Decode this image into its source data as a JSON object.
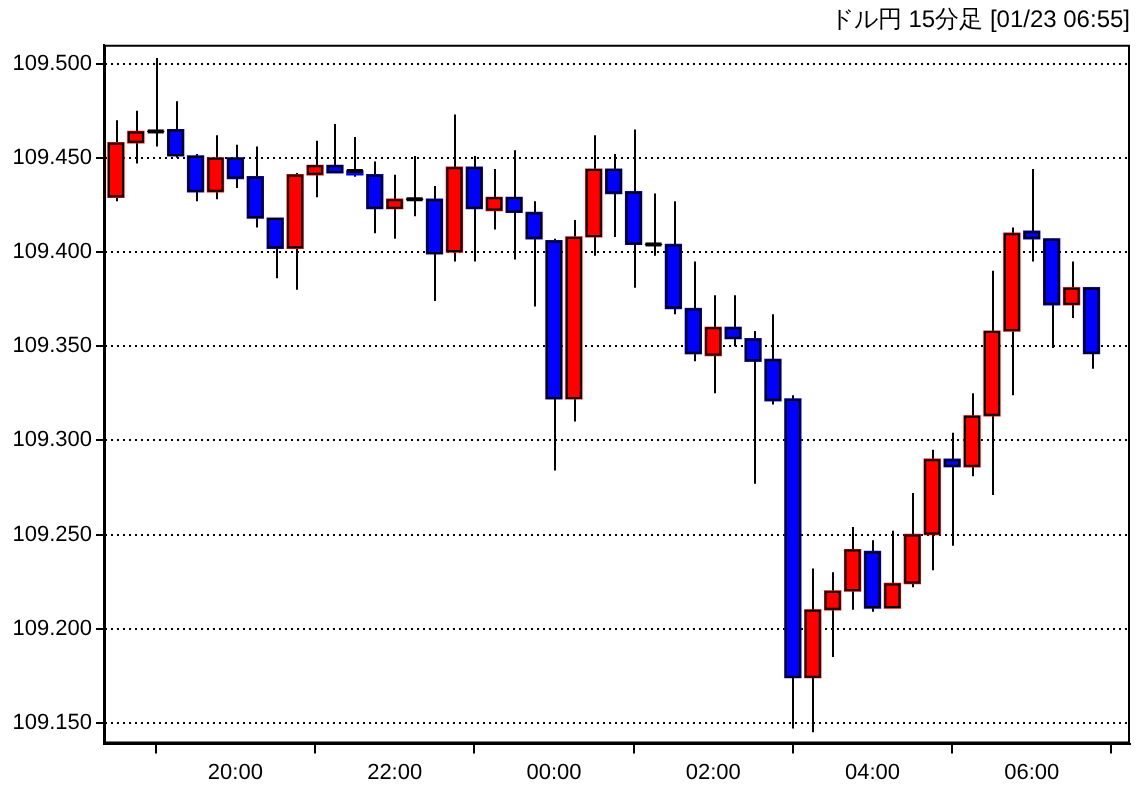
{
  "chart_data": {
    "type": "candlestick",
    "title": "ドル円 15分足 [01/23 06:55]",
    "x": [
      "--01-22T18:30",
      "--01-22T18:45",
      "--01-22T19:00",
      "--01-22T19:15",
      "--01-22T19:30",
      "--01-22T19:45",
      "--01-22T20:00",
      "--01-22T20:15",
      "--01-22T20:30",
      "--01-22T20:45",
      "--01-22T21:00",
      "--01-22T21:15",
      "--01-22T21:30",
      "--01-22T21:45",
      "--01-22T22:00",
      "--01-22T22:15",
      "--01-22T22:30",
      "--01-22T22:45",
      "--01-22T23:00",
      "--01-22T23:15",
      "--01-22T23:30",
      "--01-22T23:45",
      "--01-23T00:00",
      "--01-23T00:15",
      "--01-23T00:30",
      "--01-23T00:45",
      "--01-23T01:00",
      "--01-23T01:15",
      "--01-23T01:30",
      "--01-23T01:45",
      "--01-23T02:00",
      "--01-23T02:15",
      "--01-23T02:30",
      "--01-23T02:45",
      "--01-23T03:00",
      "--01-23T03:15",
      "--01-23T03:30",
      "--01-23T03:45",
      "--01-23T04:00",
      "--01-23T04:15",
      "--01-23T04:30",
      "--01-23T04:45",
      "--01-23T05:00",
      "--01-23T05:15",
      "--01-23T05:30",
      "--01-23T05:45",
      "--01-23T06:00",
      "--01-23T06:15",
      "--01-23T06:30",
      "--01-23T06:45"
    ],
    "ohlc": [
      [
        109.429,
        109.47,
        109.427,
        109.458
      ],
      [
        109.458,
        109.475,
        109.447,
        109.464
      ],
      [
        109.464,
        109.503,
        109.456,
        109.464
      ],
      [
        109.465,
        109.48,
        109.45,
        109.451
      ],
      [
        109.451,
        109.452,
        109.427,
        109.432
      ],
      [
        109.432,
        109.462,
        109.428,
        109.45
      ],
      [
        109.45,
        109.457,
        109.434,
        109.439
      ],
      [
        109.44,
        109.456,
        109.413,
        109.418
      ],
      [
        109.418,
        109.418,
        109.386,
        109.402
      ],
      [
        109.402,
        109.442,
        109.38,
        109.441
      ],
      [
        109.441,
        109.459,
        109.429,
        109.446
      ],
      [
        109.446,
        109.468,
        109.442,
        109.442
      ],
      [
        109.443,
        109.461,
        109.44,
        109.441
      ],
      [
        109.441,
        109.448,
        109.41,
        109.423
      ],
      [
        109.423,
        109.441,
        109.407,
        109.428
      ],
      [
        109.428,
        109.451,
        109.419,
        109.428
      ],
      [
        109.428,
        109.435,
        109.374,
        109.399
      ],
      [
        109.4,
        109.473,
        109.395,
        109.445
      ],
      [
        109.445,
        109.451,
        109.395,
        109.423
      ],
      [
        109.422,
        109.444,
        109.412,
        109.429
      ],
      [
        109.429,
        109.454,
        109.396,
        109.421
      ],
      [
        109.421,
        109.427,
        109.371,
        109.407
      ],
      [
        109.406,
        109.407,
        109.284,
        109.322
      ],
      [
        109.322,
        109.417,
        109.31,
        109.408
      ],
      [
        109.408,
        109.462,
        109.398,
        109.444
      ],
      [
        109.444,
        109.452,
        109.408,
        109.431
      ],
      [
        109.432,
        109.465,
        109.381,
        109.404
      ],
      [
        109.404,
        109.431,
        109.398,
        109.404
      ],
      [
        109.404,
        109.427,
        109.367,
        109.37
      ],
      [
        109.37,
        109.395,
        109.342,
        109.346
      ],
      [
        109.345,
        109.377,
        109.325,
        109.36
      ],
      [
        109.36,
        109.377,
        109.35,
        109.354
      ],
      [
        109.354,
        109.358,
        109.277,
        109.342
      ],
      [
        109.343,
        109.367,
        109.319,
        109.321
      ],
      [
        109.322,
        109.324,
        109.147,
        109.174
      ],
      [
        109.174,
        109.232,
        109.145,
        109.21
      ],
      [
        109.21,
        109.23,
        109.185,
        109.22
      ],
      [
        109.22,
        109.254,
        109.21,
        109.242
      ],
      [
        109.241,
        109.247,
        109.209,
        109.211
      ],
      [
        109.211,
        109.252,
        109.211,
        109.224
      ],
      [
        109.224,
        109.272,
        109.222,
        109.25
      ],
      [
        109.25,
        109.295,
        109.231,
        109.29
      ],
      [
        109.29,
        109.304,
        109.244,
        109.286
      ],
      [
        109.286,
        109.325,
        109.281,
        109.313
      ],
      [
        109.313,
        109.39,
        109.271,
        109.358
      ],
      [
        109.358,
        109.413,
        109.324,
        109.41
      ],
      [
        109.411,
        109.444,
        109.395,
        109.407
      ],
      [
        109.407,
        109.407,
        109.349,
        109.372
      ],
      [
        109.372,
        109.395,
        109.365,
        109.381
      ],
      [
        109.381,
        109.381,
        109.338,
        109.346
      ]
    ],
    "colors": [
      "#ff0000",
      "#ff0000",
      "#000000",
      "#0000ff",
      "#0000ff",
      "#ff0000",
      "#0000ff",
      "#0000ff",
      "#0000ff",
      "#ff0000",
      "#ff0000",
      "#0000ff",
      "#0000ff",
      "#0000ff",
      "#ff0000",
      "#000000",
      "#0000ff",
      "#ff0000",
      "#0000ff",
      "#ff0000",
      "#0000ff",
      "#0000ff",
      "#0000ff",
      "#ff0000",
      "#ff0000",
      "#0000ff",
      "#0000ff",
      "#000000",
      "#0000ff",
      "#0000ff",
      "#ff0000",
      "#0000ff",
      "#0000ff",
      "#0000ff",
      "#0000ff",
      "#ff0000",
      "#ff0000",
      "#ff0000",
      "#0000ff",
      "#ff0000",
      "#ff0000",
      "#ff0000",
      "#0000ff",
      "#ff0000",
      "#ff0000",
      "#ff0000",
      "#0000ff",
      "#0000ff",
      "#ff0000",
      "#0000ff"
    ],
    "xlim": [
      "--01-22T18:21",
      "--01-23T07:14"
    ],
    "xticks": [
      {
        "value": "--01-22T20:00",
        "label": "20:00"
      },
      {
        "value": "--01-22T22:00",
        "label": "22:00"
      },
      {
        "value": "--01-23T00:00",
        "label": "00:00"
      },
      {
        "value": "--01-23T02:00",
        "label": "02:00"
      },
      {
        "value": "--01-23T04:00",
        "label": "04:00"
      },
      {
        "value": "--01-23T06:00",
        "label": "06:00"
      }
    ],
    "ylim": [
      109.139,
      109.51
    ],
    "yticks": [
      {
        "value": 109.15,
        "label": "109.150"
      },
      {
        "value": 109.2,
        "label": "109.200"
      },
      {
        "value": 109.25,
        "label": "109.250"
      },
      {
        "value": 109.3,
        "label": "109.300"
      },
      {
        "value": 109.35,
        "label": "109.350"
      },
      {
        "value": 109.4,
        "label": "109.400"
      },
      {
        "value": 109.45,
        "label": "109.450"
      },
      {
        "value": 109.5,
        "label": "109.500"
      }
    ],
    "grid": "y",
    "legend": false
  }
}
